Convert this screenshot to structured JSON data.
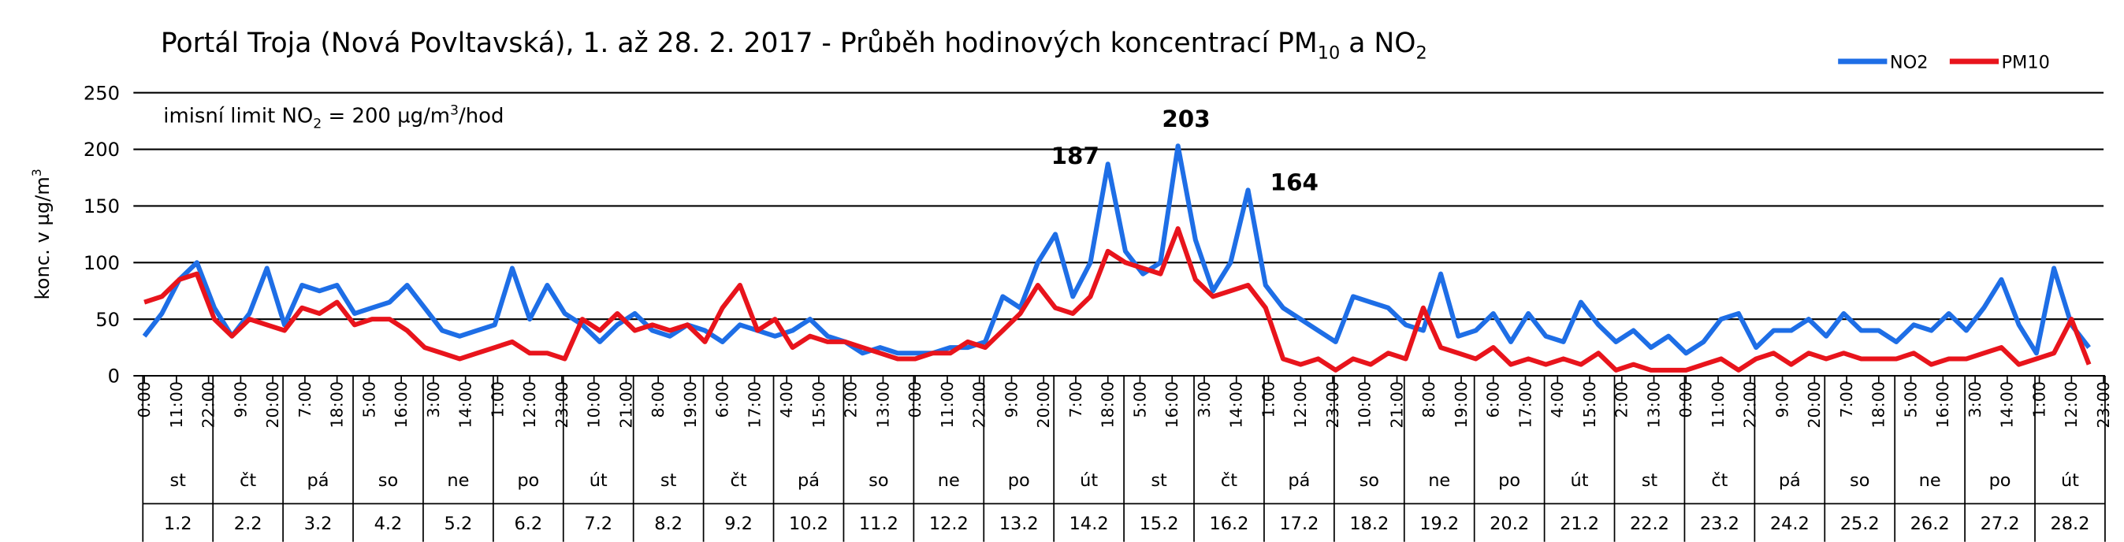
{
  "chart_data": {
    "type": "line",
    "title": [
      "Portál Troja  (Nová Povltavská), 1. až 28. 2. 2017 - Průběh hodinových koncentrací PM",
      "10",
      " a NO",
      "2"
    ],
    "ylabel": [
      "konc. v µg/m",
      "3"
    ],
    "note": [
      "imisní limit NO",
      "2",
      " = 200 µg/m",
      "3",
      "/hod"
    ],
    "legend": "upper right",
    "grid": true,
    "ylim": [
      0,
      250
    ],
    "yticks": [
      0,
      50,
      100,
      150,
      200,
      250
    ],
    "xlim": [
      0,
      671
    ],
    "xticks": [
      {
        "value": 0,
        "label": "0:00"
      },
      {
        "value": 11,
        "label": "11:00"
      },
      {
        "value": 22,
        "label": "22:00"
      },
      {
        "value": 33,
        "label": "9:00"
      },
      {
        "value": 44,
        "label": "20:00"
      },
      {
        "value": 55,
        "label": "7:00"
      },
      {
        "value": 66,
        "label": "18:00"
      },
      {
        "value": 77,
        "label": "5:00"
      },
      {
        "value": 88,
        "label": "16:00"
      },
      {
        "value": 99,
        "label": "3:00"
      },
      {
        "value": 110,
        "label": "14:00"
      },
      {
        "value": 121,
        "label": "1:00"
      },
      {
        "value": 132,
        "label": "12:00"
      },
      {
        "value": 143,
        "label": "23:00"
      },
      {
        "value": 154,
        "label": "10:00"
      },
      {
        "value": 165,
        "label": "21:00"
      },
      {
        "value": 176,
        "label": "8:00"
      },
      {
        "value": 187,
        "label": "19:00"
      },
      {
        "value": 198,
        "label": "6:00"
      },
      {
        "value": 209,
        "label": "17:00"
      },
      {
        "value": 220,
        "label": "4:00"
      },
      {
        "value": 231,
        "label": "15:00"
      },
      {
        "value": 242,
        "label": "2:00"
      },
      {
        "value": 253,
        "label": "13:00"
      },
      {
        "value": 264,
        "label": "0:00"
      },
      {
        "value": 275,
        "label": "11:00"
      },
      {
        "value": 286,
        "label": "22:00"
      },
      {
        "value": 297,
        "label": "9:00"
      },
      {
        "value": 308,
        "label": "20:00"
      },
      {
        "value": 319,
        "label": "7:00"
      },
      {
        "value": 330,
        "label": "18:00"
      },
      {
        "value": 341,
        "label": "5:00"
      },
      {
        "value": 352,
        "label": "16:00"
      },
      {
        "value": 363,
        "label": "3:00"
      },
      {
        "value": 374,
        "label": "14:00"
      },
      {
        "value": 385,
        "label": "1:00"
      },
      {
        "value": 396,
        "label": "12:00"
      },
      {
        "value": 407,
        "label": "23:00"
      },
      {
        "value": 418,
        "label": "10:00"
      },
      {
        "value": 429,
        "label": "21:00"
      },
      {
        "value": 440,
        "label": "8:00"
      },
      {
        "value": 451,
        "label": "19:00"
      },
      {
        "value": 462,
        "label": "6:00"
      },
      {
        "value": 473,
        "label": "17:00"
      },
      {
        "value": 484,
        "label": "4:00"
      },
      {
        "value": 495,
        "label": "15:00"
      },
      {
        "value": 506,
        "label": "2:00"
      },
      {
        "value": 517,
        "label": "13:00"
      },
      {
        "value": 528,
        "label": "0:00"
      },
      {
        "value": 539,
        "label": "11:00"
      },
      {
        "value": 550,
        "label": "22:00"
      },
      {
        "value": 561,
        "label": "9:00"
      },
      {
        "value": 572,
        "label": "20:00"
      },
      {
        "value": 583,
        "label": "7:00"
      },
      {
        "value": 594,
        "label": "18:00"
      },
      {
        "value": 605,
        "label": "5:00"
      },
      {
        "value": 616,
        "label": "16:00"
      },
      {
        "value": 627,
        "label": "3:00"
      },
      {
        "value": 638,
        "label": "14:00"
      },
      {
        "value": 649,
        "label": "1:00"
      },
      {
        "value": 660,
        "label": "12:00"
      },
      {
        "value": 671,
        "label": "23:00"
      }
    ],
    "days": [
      {
        "weekday": "st",
        "date": "1.2"
      },
      {
        "weekday": "čt",
        "date": "2.2"
      },
      {
        "weekday": "pá",
        "date": "3.2"
      },
      {
        "weekday": "so",
        "date": "4.2"
      },
      {
        "weekday": "ne",
        "date": "5.2"
      },
      {
        "weekday": "po",
        "date": "6.2"
      },
      {
        "weekday": "út",
        "date": "7.2"
      },
      {
        "weekday": "st",
        "date": "8.2"
      },
      {
        "weekday": "čt",
        "date": "9.2"
      },
      {
        "weekday": "pá",
        "date": "10.2"
      },
      {
        "weekday": "so",
        "date": "11.2"
      },
      {
        "weekday": "ne",
        "date": "12.2"
      },
      {
        "weekday": "po",
        "date": "13.2"
      },
      {
        "weekday": "út",
        "date": "14.2"
      },
      {
        "weekday": "st",
        "date": "15.2"
      },
      {
        "weekday": "čt",
        "date": "16.2"
      },
      {
        "weekday": "pá",
        "date": "17.2"
      },
      {
        "weekday": "so",
        "date": "18.2"
      },
      {
        "weekday": "ne",
        "date": "19.2"
      },
      {
        "weekday": "po",
        "date": "20.2"
      },
      {
        "weekday": "út",
        "date": "21.2"
      },
      {
        "weekday": "st",
        "date": "22.2"
      },
      {
        "weekday": "čt",
        "date": "23.2"
      },
      {
        "weekday": "pá",
        "date": "24.2"
      },
      {
        "weekday": "so",
        "date": "25.2"
      },
      {
        "weekday": "ne",
        "date": "26.2"
      },
      {
        "weekday": "po",
        "date": "27.2"
      },
      {
        "weekday": "út",
        "date": "28.2"
      }
    ],
    "x": [
      0,
      6,
      12,
      18,
      24,
      30,
      36,
      42,
      48,
      54,
      60,
      66,
      72,
      78,
      84,
      90,
      96,
      102,
      108,
      114,
      120,
      126,
      132,
      138,
      144,
      150,
      156,
      162,
      168,
      174,
      180,
      186,
      192,
      198,
      204,
      210,
      216,
      222,
      228,
      234,
      240,
      246,
      252,
      258,
      264,
      270,
      276,
      282,
      288,
      294,
      300,
      306,
      312,
      318,
      324,
      330,
      336,
      342,
      348,
      354,
      360,
      366,
      372,
      378,
      384,
      390,
      396,
      402,
      408,
      414,
      420,
      426,
      432,
      438,
      444,
      450,
      456,
      462,
      468,
      474,
      480,
      486,
      492,
      498,
      504,
      510,
      516,
      522,
      528,
      534,
      540,
      546,
      552,
      558,
      564,
      570,
      576,
      582,
      588,
      594,
      600,
      606,
      612,
      618,
      624,
      630,
      636,
      642,
      648,
      654,
      660,
      666
    ],
    "series": [
      {
        "name": "NO2",
        "color": "#1e6ee6",
        "values": [
          35,
          55,
          85,
          100,
          60,
          35,
          55,
          95,
          45,
          80,
          75,
          80,
          55,
          60,
          65,
          80,
          60,
          40,
          35,
          40,
          45,
          95,
          50,
          80,
          55,
          45,
          30,
          45,
          55,
          40,
          35,
          45,
          40,
          30,
          45,
          40,
          35,
          40,
          50,
          35,
          30,
          20,
          25,
          20,
          20,
          20,
          25,
          25,
          30,
          70,
          60,
          100,
          125,
          70,
          100,
          187,
          110,
          90,
          100,
          203,
          120,
          75,
          100,
          164,
          80,
          60,
          50,
          40,
          30,
          70,
          65,
          60,
          45,
          40,
          90,
          35,
          40,
          55,
          30,
          55,
          35,
          30,
          65,
          45,
          30,
          40,
          25,
          35,
          20,
          30,
          50,
          55,
          25,
          40,
          40,
          50,
          35,
          55,
          40,
          40,
          30,
          45,
          40,
          55,
          40,
          60,
          85,
          45,
          20,
          95,
          45,
          25
        ],
        "value_labels": [
          null,
          null,
          null,
          null,
          null,
          null,
          null,
          null,
          null,
          null,
          null,
          null,
          null,
          null,
          null,
          null,
          null,
          null,
          null,
          null,
          null,
          null,
          null,
          null,
          null,
          null,
          null,
          null,
          null,
          null,
          null,
          null,
          null,
          null,
          null,
          null,
          null,
          null,
          null,
          null,
          null,
          null,
          null,
          null,
          null,
          null,
          null,
          null,
          null,
          null,
          null,
          null,
          null,
          null,
          null,
          "187",
          null,
          null,
          null,
          "203",
          null,
          null,
          null,
          "164",
          null,
          null,
          null,
          null,
          null,
          null,
          null,
          null,
          null,
          null,
          null,
          null,
          null,
          null,
          null,
          null,
          null,
          null,
          null,
          null,
          null,
          null,
          null,
          null,
          null,
          null,
          null,
          null,
          null,
          null,
          null,
          null,
          null,
          null,
          null,
          null,
          null,
          null,
          null,
          null,
          null,
          null,
          null,
          null,
          null,
          null,
          null,
          null
        ]
      },
      {
        "name": "PM10",
        "color": "#e8141c",
        "values": [
          65,
          70,
          85,
          90,
          50,
          35,
          50,
          45,
          40,
          60,
          55,
          65,
          45,
          50,
          50,
          40,
          25,
          20,
          15,
          20,
          25,
          30,
          20,
          20,
          15,
          50,
          40,
          55,
          40,
          45,
          40,
          45,
          30,
          60,
          80,
          40,
          50,
          25,
          35,
          30,
          30,
          25,
          20,
          15,
          15,
          20,
          20,
          30,
          25,
          40,
          55,
          80,
          60,
          55,
          70,
          110,
          100,
          95,
          90,
          130,
          85,
          70,
          75,
          80,
          60,
          15,
          10,
          15,
          5,
          15,
          10,
          20,
          15,
          60,
          25,
          20,
          15,
          25,
          10,
          15,
          10,
          15,
          10,
          20,
          5,
          10,
          5,
          5,
          5,
          10,
          15,
          5,
          15,
          20,
          10,
          20,
          15,
          20,
          15,
          15,
          15,
          20,
          10,
          15,
          15,
          20,
          25,
          10,
          15,
          20,
          50,
          10
        ]
      }
    ]
  }
}
